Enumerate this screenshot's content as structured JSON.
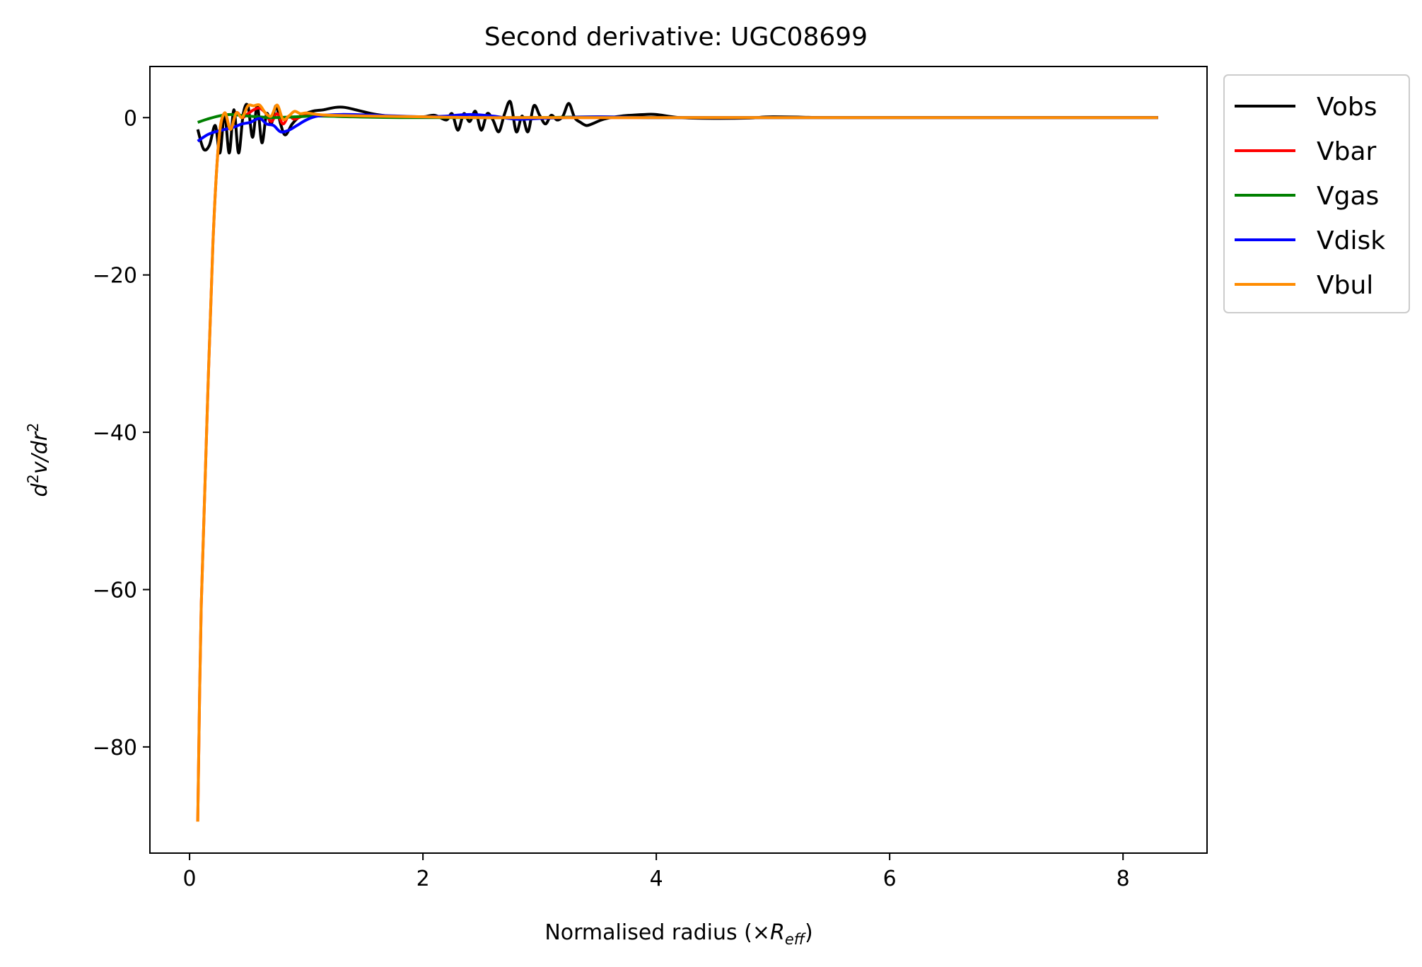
{
  "chart_data": {
    "type": "line",
    "title": "Second derivative: UGC08699",
    "xlabel": "Normalised radius (×R_eff)",
    "xlabel_parts": {
      "prefix": "Normalised radius (×",
      "symbol": "R",
      "subscript": "eff",
      "suffix": ")"
    },
    "ylabel": "d²v/dr²",
    "ylabel_parts": {
      "d1": "d",
      "sup1": "2",
      "v": "v/dr",
      "sup2": "2"
    },
    "xlim": [
      -0.34,
      8.72
    ],
    "ylim": [
      -93.5,
      6.5
    ],
    "xticks": [
      0,
      2,
      4,
      6,
      8
    ],
    "xtick_labels": [
      "0",
      "2",
      "4",
      "6",
      "8"
    ],
    "yticks": [
      0,
      -20,
      -40,
      -60,
      -80
    ],
    "ytick_labels": [
      "0",
      "−20",
      "−40",
      "−60",
      "−80"
    ],
    "grid": false,
    "legend_position": "outside top-right",
    "series": [
      {
        "name": "Vobs",
        "color": "#000000",
        "x": [
          0.07,
          0.12,
          0.17,
          0.22,
          0.26,
          0.3,
          0.34,
          0.38,
          0.42,
          0.46,
          0.5,
          0.54,
          0.58,
          0.62,
          0.66,
          0.7,
          0.74,
          0.78,
          0.82,
          0.88,
          0.95,
          1.05,
          1.15,
          1.25,
          1.33,
          1.45,
          1.6,
          1.8,
          2.0,
          2.1,
          2.2,
          2.25,
          2.3,
          2.35,
          2.4,
          2.45,
          2.5,
          2.55,
          2.6,
          2.65,
          2.7,
          2.75,
          2.8,
          2.85,
          2.9,
          2.95,
          3.0,
          3.05,
          3.1,
          3.15,
          3.2,
          3.25,
          3.3,
          3.35,
          3.4,
          3.45,
          3.55,
          3.7,
          3.9,
          4.0,
          4.2,
          4.5,
          4.8,
          5.0,
          5.5,
          6.0,
          7.0,
          8.0,
          8.3
        ],
        "y": [
          -1.5,
          -4.0,
          -3.5,
          -1.0,
          -4.5,
          0.5,
          -4.5,
          1.0,
          -4.5,
          0.5,
          1.5,
          -2.5,
          1.5,
          -3.2,
          0.5,
          -0.8,
          1.5,
          -0.8,
          -2.2,
          -0.8,
          0.2,
          0.8,
          1.0,
          1.3,
          1.3,
          0.9,
          0.4,
          0.1,
          0.1,
          0.3,
          -0.3,
          0.5,
          -1.6,
          0.5,
          -0.5,
          0.8,
          -1.6,
          0.5,
          -0.3,
          -1.8,
          0.5,
          2.0,
          -1.8,
          0.2,
          -1.8,
          1.5,
          0.3,
          -0.8,
          0.3,
          -0.3,
          0.2,
          1.8,
          0.0,
          -0.6,
          -1.0,
          -0.8,
          -0.2,
          0.2,
          0.4,
          0.4,
          0.0,
          -0.1,
          -0.05,
          0.1,
          0.0,
          0.0,
          0.0,
          0.0,
          0.0
        ]
      },
      {
        "name": "Vbar",
        "color": "#ff0000",
        "x": [
          0.07,
          0.1,
          0.15,
          0.2,
          0.25,
          0.3,
          0.35,
          0.4,
          0.45,
          0.5,
          0.55,
          0.6,
          0.65,
          0.7,
          0.75,
          0.8,
          0.85,
          0.9,
          1.0,
          1.2,
          1.5,
          2.0,
          2.5,
          3.0,
          4.0,
          5.0,
          6.0,
          7.0,
          8.0,
          8.3
        ],
        "y": [
          -89.5,
          -62.0,
          -38.0,
          -16.0,
          -3.0,
          0.6,
          -1.5,
          0.6,
          0.0,
          0.5,
          1.0,
          1.2,
          0.6,
          -0.5,
          0.5,
          -0.8,
          0.2,
          -0.2,
          0.3,
          0.3,
          0.1,
          0.1,
          0.0,
          0.0,
          0.0,
          0.0,
          0.0,
          0.0,
          0.0,
          0.0
        ]
      },
      {
        "name": "Vgas",
        "color": "#008000",
        "x": [
          0.07,
          0.15,
          0.25,
          0.35,
          0.5,
          0.7,
          0.9,
          1.1,
          1.4,
          1.8,
          2.2,
          2.6,
          3.0,
          3.5,
          4.0,
          5.0,
          6.0,
          7.0,
          8.0,
          8.3
        ],
        "y": [
          -0.6,
          -0.2,
          0.2,
          0.4,
          0.2,
          0.0,
          0.1,
          0.2,
          0.1,
          0.0,
          0.0,
          0.0,
          0.0,
          0.1,
          0.0,
          0.0,
          0.0,
          0.0,
          0.0,
          0.0
        ]
      },
      {
        "name": "Vdisk",
        "color": "#0000ff",
        "x": [
          0.07,
          0.15,
          0.22,
          0.3,
          0.38,
          0.45,
          0.52,
          0.6,
          0.66,
          0.72,
          0.78,
          0.85,
          0.92,
          1.0,
          1.1,
          1.3,
          1.6,
          2.0,
          2.2,
          2.4,
          2.6,
          2.8,
          3.0,
          3.2,
          3.5,
          4.0,
          5.0,
          6.0,
          7.0,
          8.0,
          8.3
        ],
        "y": [
          -3.0,
          -2.2,
          -1.8,
          -1.5,
          -1.2,
          -0.8,
          -0.6,
          -0.1,
          -0.8,
          -1.0,
          -1.8,
          -1.6,
          -1.0,
          -0.3,
          0.2,
          0.4,
          0.3,
          0.1,
          0.2,
          0.4,
          0.2,
          -0.2,
          -0.1,
          0.0,
          0.1,
          0.0,
          0.0,
          0.0,
          0.0,
          0.0,
          0.0
        ]
      },
      {
        "name": "Vbul",
        "color": "#ff8c00",
        "x": [
          0.07,
          0.1,
          0.15,
          0.2,
          0.25,
          0.3,
          0.35,
          0.4,
          0.45,
          0.5,
          0.55,
          0.6,
          0.65,
          0.7,
          0.75,
          0.8,
          0.85,
          0.9,
          0.95,
          1.0,
          1.1,
          1.2,
          1.5,
          2.0,
          2.5,
          3.0,
          3.5,
          4.0,
          5.0,
          6.0,
          7.0,
          8.0,
          8.3
        ],
        "y": [
          -89.5,
          -62.0,
          -38.0,
          -16.0,
          -3.0,
          0.6,
          -1.5,
          0.6,
          0.0,
          1.5,
          1.5,
          1.6,
          0.6,
          0.2,
          1.6,
          -0.2,
          0.2,
          0.8,
          0.5,
          0.6,
          0.4,
          0.3,
          0.2,
          0.1,
          0.0,
          0.0,
          0.0,
          0.0,
          0.0,
          0.0,
          0.0,
          0.0,
          0.0
        ]
      }
    ]
  }
}
